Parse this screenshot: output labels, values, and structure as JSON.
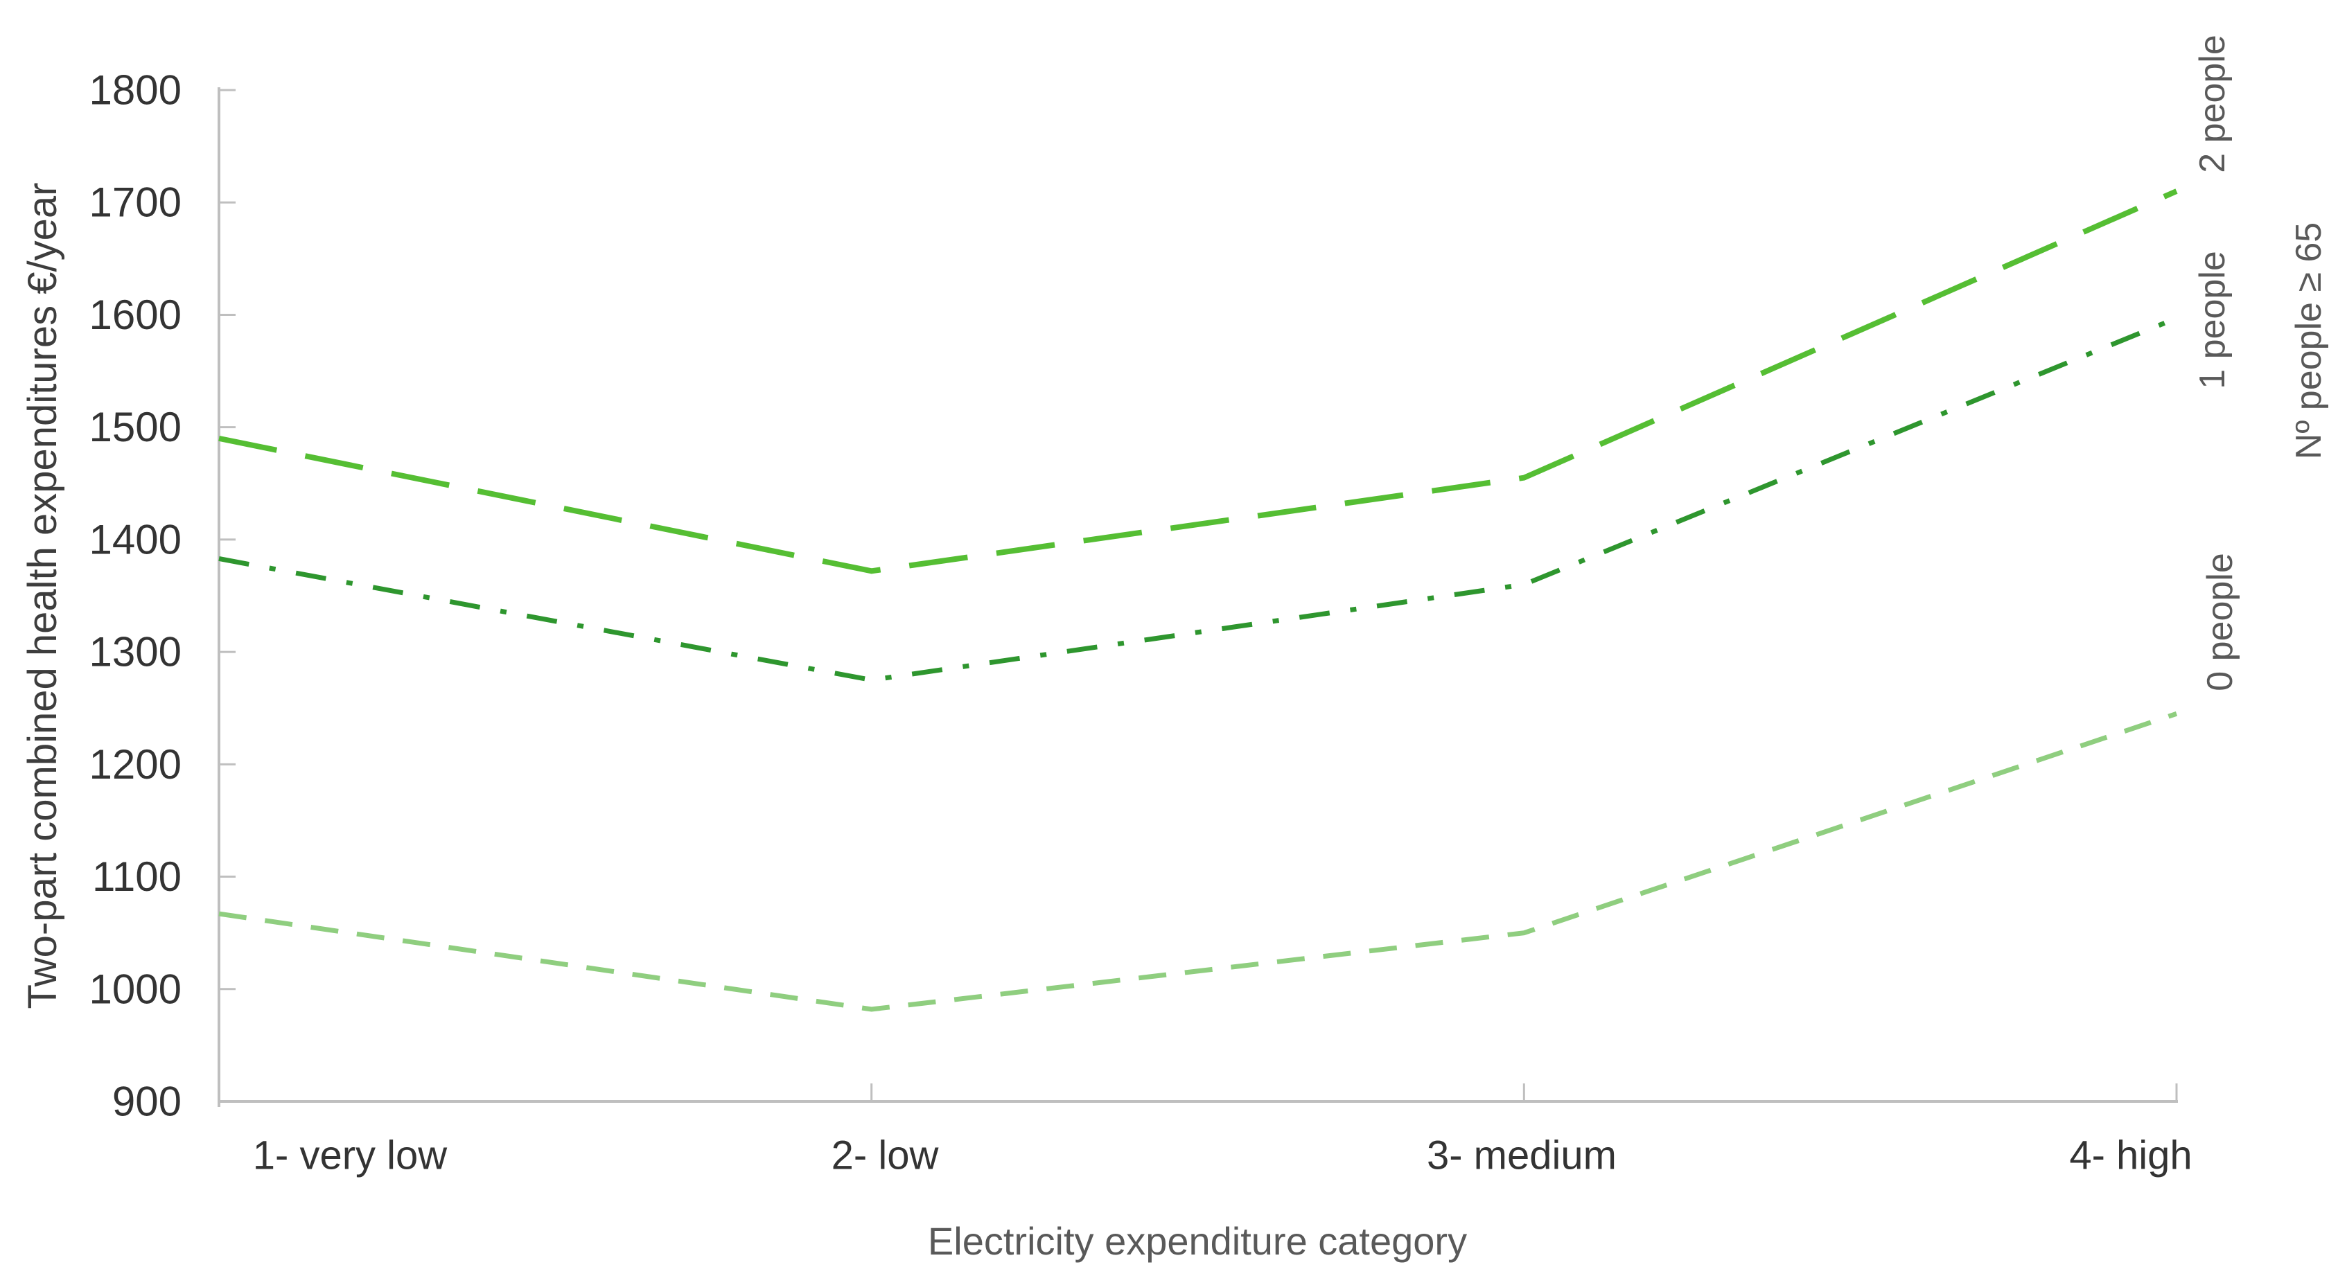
{
  "chart_data": {
    "type": "line",
    "title": "",
    "categories": [
      "1- very low",
      "2- low",
      "3- medium",
      "4- high"
    ],
    "series": [
      {
        "name": "2 people",
        "values": [
          1490,
          1372,
          1455,
          1710
        ],
        "color": "#55BE33",
        "dash_style": "long-dash"
      },
      {
        "name": "1 people",
        "values": [
          1383,
          1275,
          1360,
          1597
        ],
        "color": "#2E962E",
        "dash_style": "dash-dot"
      },
      {
        "name": "0 people",
        "values": [
          1067,
          982,
          1050,
          1245
        ],
        "color": "#8FCE7F",
        "dash_style": "short-dash"
      }
    ],
    "series_group_label": "Nº people ≥ 65",
    "xlabel": "Electricity expenditure category",
    "ylabel": "Two-part combined health expenditures €/year",
    "ylim": [
      900,
      1800
    ],
    "y_ticks": [
      900,
      1000,
      1100,
      1200,
      1300,
      1400,
      1500,
      1600,
      1700,
      1800
    ],
    "grid": "off",
    "legend_position": "right-rotated-end-labels",
    "axis_color": "#BFBFBF",
    "tick_label_color": "#333333",
    "axis_title_color": "#595959"
  }
}
